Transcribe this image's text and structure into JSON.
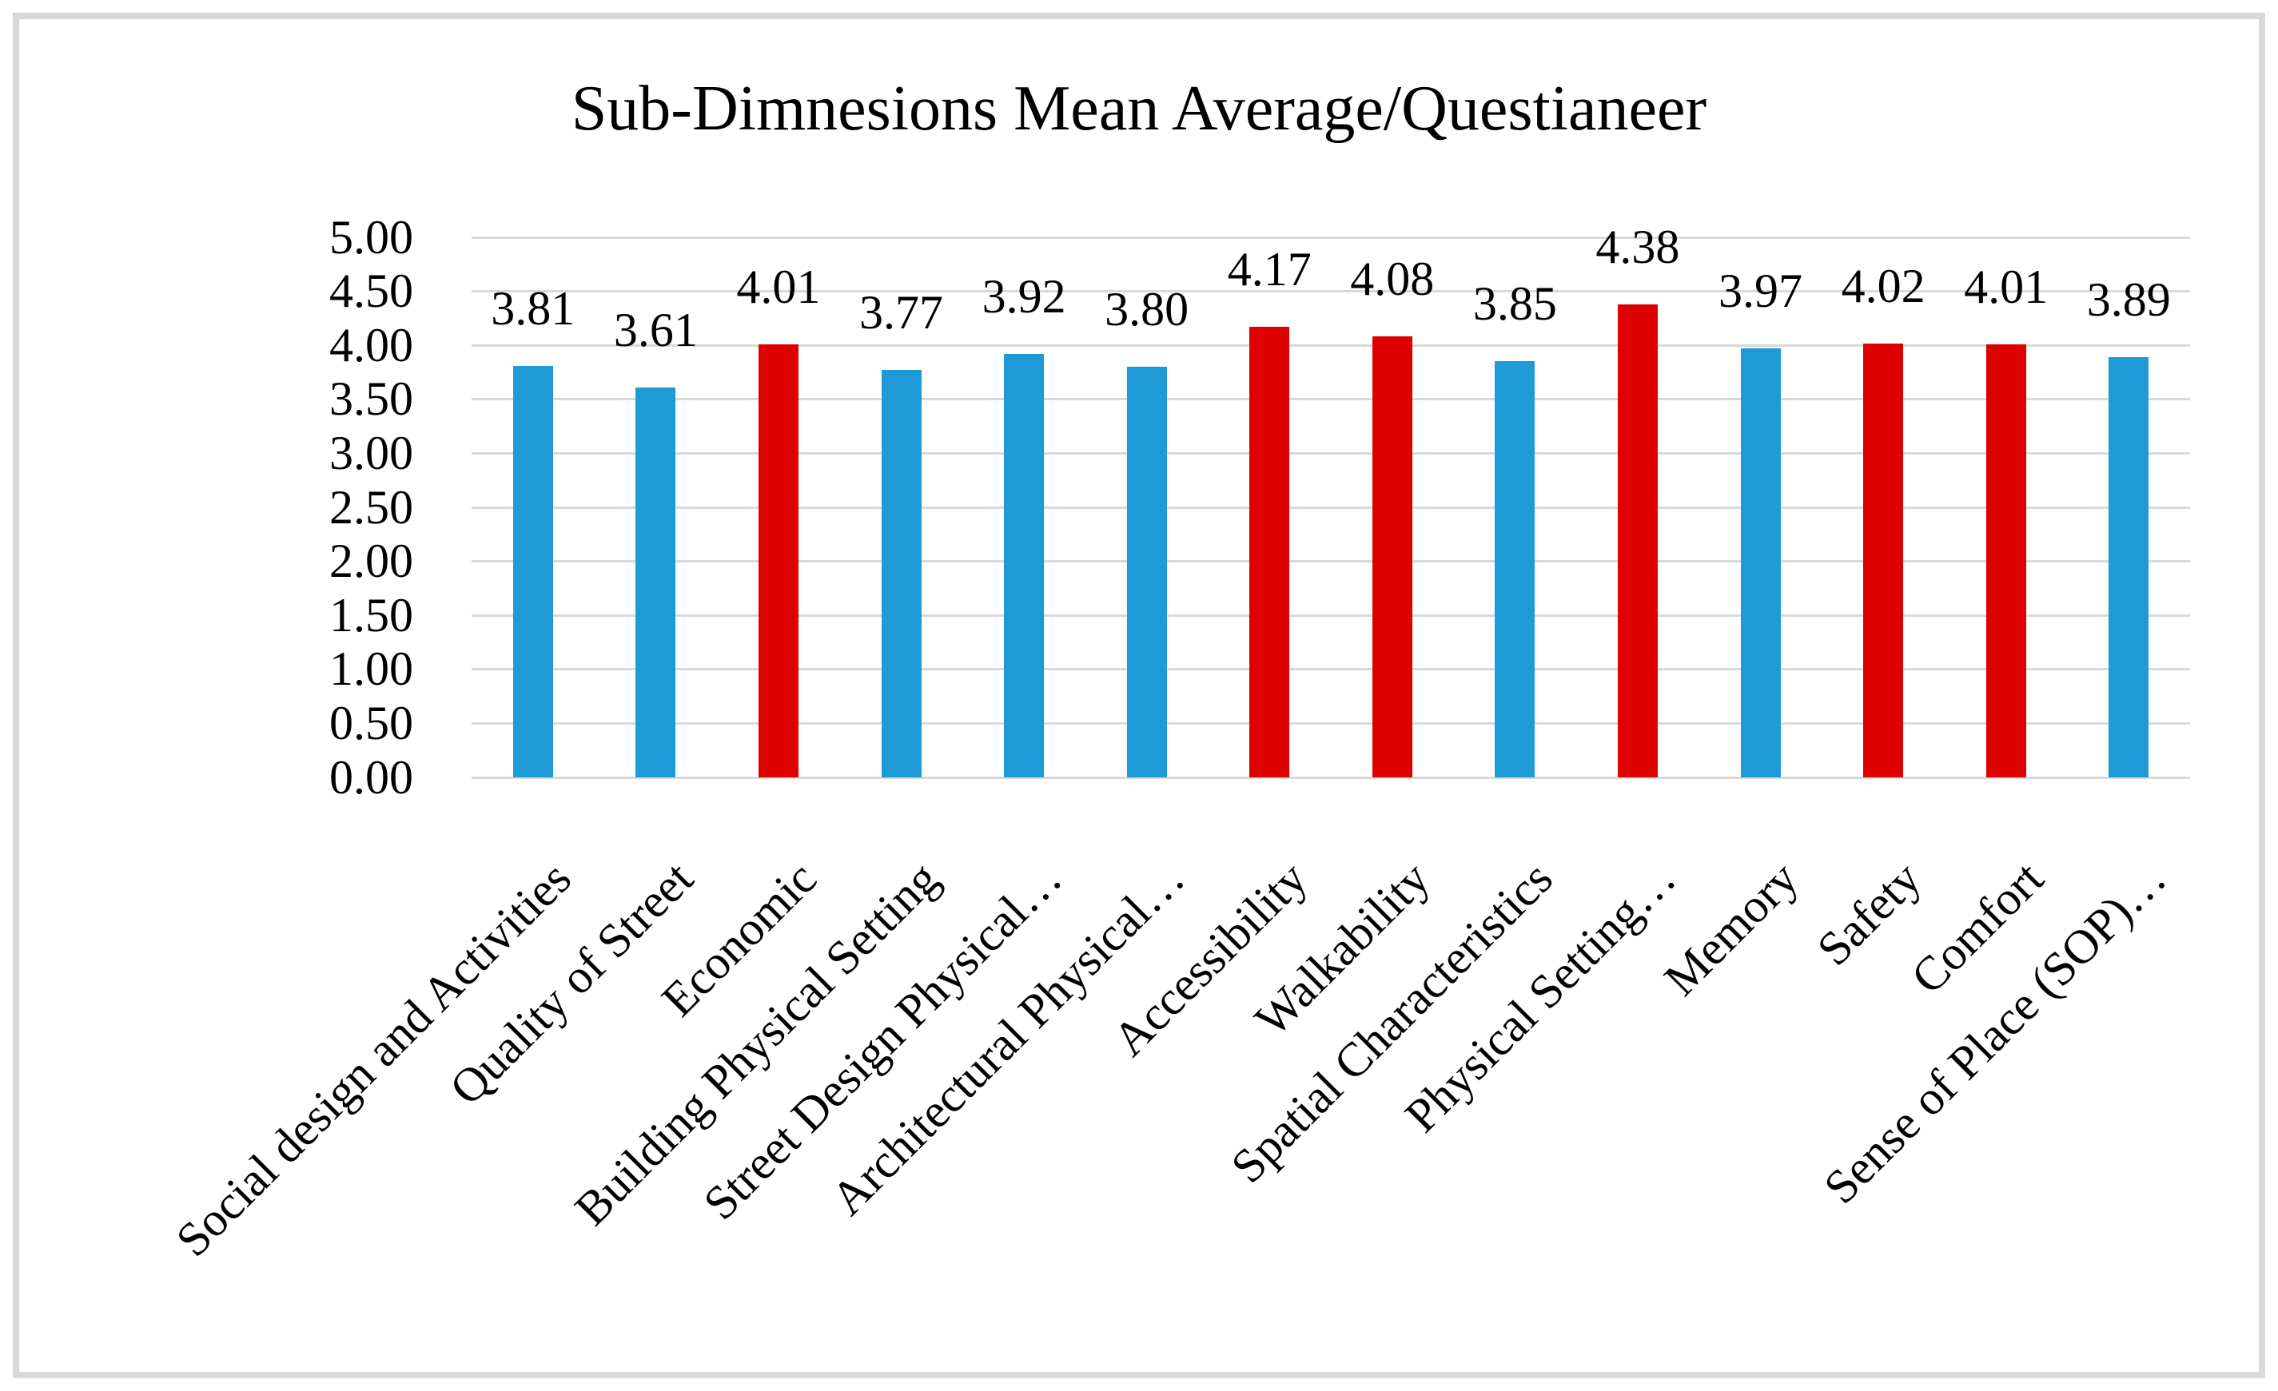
{
  "chart_data": {
    "type": "bar",
    "title": "Sub-Dimnesions Mean Average/Questianeer",
    "categories": [
      "Social design and Activities",
      "Quality of Street",
      "Economic",
      "Building Physical Setting",
      "Street Design Physical…",
      "Architectural Physical…",
      "Accessibility",
      "Walkability",
      "Spatial Characteristics",
      "Physical Setting…",
      "Memory",
      "Safety",
      "Comfort",
      "Sense of Place (SOP)…"
    ],
    "values": [
      3.81,
      3.61,
      4.01,
      3.77,
      3.92,
      3.8,
      4.17,
      4.08,
      3.85,
      4.38,
      3.97,
      4.02,
      4.01,
      3.89
    ],
    "value_labels": [
      "3.81",
      "3.61",
      "4.01",
      "3.77",
      "3.92",
      "3.80",
      "4.17",
      "4.08",
      "3.85",
      "4.38",
      "3.97",
      "4.02",
      "4.01",
      "3.89"
    ],
    "bar_color_keys": [
      "blue",
      "blue",
      "red",
      "blue",
      "blue",
      "blue",
      "red",
      "red",
      "blue",
      "red",
      "blue",
      "red",
      "red",
      "blue"
    ],
    "palette": {
      "blue": "#1E9BD6",
      "red": "#DE0000",
      "gridline": "#D9D9D9",
      "frame": "#D9D9D9",
      "text": "#000000"
    },
    "y_axis": {
      "min": 0,
      "max": 5,
      "step": 0.5,
      "tick_labels": [
        "5.00",
        "4.50",
        "4.00",
        "3.50",
        "3.00",
        "2.50",
        "2.00",
        "1.50",
        "1.00",
        "0.50",
        "0.00"
      ]
    },
    "xlabel": "",
    "ylabel": "",
    "grid": true,
    "legend": "none"
  }
}
